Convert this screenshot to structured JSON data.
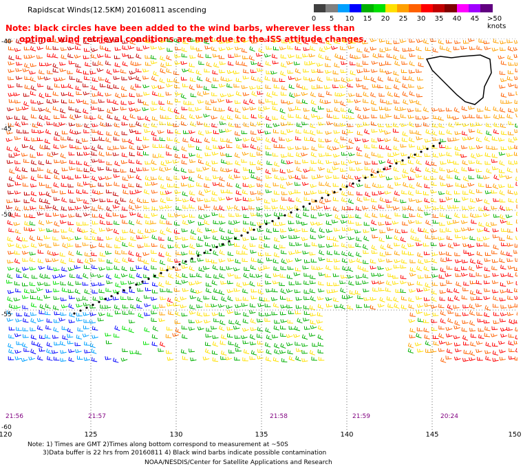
{
  "title": "Rapidscat Winds(12.5KM) 20160811 ascending",
  "note": {
    "line1": "Note: black circles have been added to the wind barbs, wherever less than",
    "line2": "optimal wind retrieval conditions are met due to the ISS attitude changes."
  },
  "wind_scale": {
    "labels": [
      "0",
      "5",
      "10",
      "15",
      "20",
      "25",
      "30",
      "35",
      "40",
      "45"
    ],
    "last_label": ">50 knots",
    "colors": [
      "#404040",
      "#808080",
      "#00a0ff",
      "#0000ff",
      "#00b000",
      "#00e000",
      "#ffe000",
      "#ffa000",
      "#ff6000",
      "#ff0000",
      "#c00000",
      "#800000",
      "#ff00ff",
      "#a000ff",
      "#600080"
    ]
  },
  "axes": {
    "lon_labels": [
      "120",
      "125",
      "130",
      "135",
      "140",
      "145",
      "150"
    ],
    "lat_labels": [
      "-40",
      "-45",
      "-50",
      "-55",
      "-60"
    ]
  },
  "pass_times": [
    {
      "label": "21:56"
    },
    {
      "label": "21:57"
    },
    {
      "label": "21:58"
    },
    {
      "label": "21:59"
    },
    {
      "label": "20:24"
    }
  ],
  "footer": {
    "line1": "Note: 1) Times are GMT 2)Times along bottom correspond to measurement at ~50S",
    "line2": "3)Data buffer is 22 hrs from 20160811 4) Black wind barbs indicate possible contamination",
    "line3": "NOAA/NESDIS/Center for Satellite Applications and Research"
  }
}
